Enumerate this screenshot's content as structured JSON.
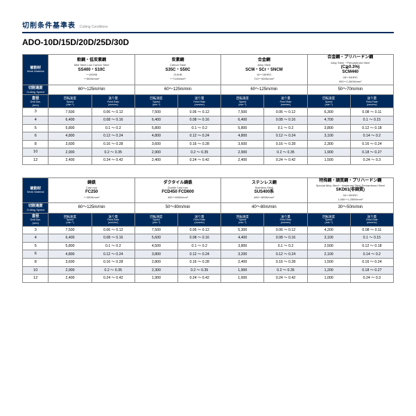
{
  "title_jp": "切削条件基準表",
  "title_en": "Cutting Conditions",
  "model": "ADO-10D/15D/20D/25D/30D",
  "labels": {
    "work": "被削材",
    "work_en": "Work Material",
    "speed": "切削速度",
    "speed_en": "Cutting Speed",
    "dia": "直径",
    "dia_en": "Drill Dia.",
    "dia_unit": "(mm)",
    "rot": "回転速度",
    "rot_en": "Speed",
    "rot_unit": "(min⁻¹)",
    "feed": "送り量",
    "feed_en": "Feed Rate",
    "feed_unit": "(mm/rev)"
  },
  "diameters": [
    "3",
    "4",
    "5",
    "6",
    "8",
    "10",
    "12"
  ],
  "t1": {
    "mats": [
      {
        "jp": "軟鋼・低炭素鋼",
        "en": "Mild Steel Low Carbon Steel",
        "spec": "SS400・S10C",
        "d1": "～150HB",
        "d2": "～500N/mm²"
      },
      {
        "jp": "炭素鋼",
        "en": "Carbon Steel",
        "spec": "S35C・S50C",
        "d1": "210HB",
        "d2": "～710N/mm²"
      },
      {
        "jp": "合金鋼",
        "en": "Alloy Steel",
        "spec": "SCM・SCr・SNCM",
        "d1": "16～28HRC",
        "d2": "710～900N/mm²"
      },
      {
        "jp": "合金鋼・プリハードン鋼",
        "en": "Alloy Steel・Prehardened Steel",
        "spec2": "(C≧0.3%)",
        "spec": "SCM440",
        "d1": "28～34HRC",
        "d2": "900～1,060N/mm²"
      }
    ],
    "speeds": [
      "60～125m/min",
      "60～125m/min",
      "60～125m/min",
      "50～70m/min"
    ],
    "rows": [
      [
        [
          "7,500",
          "0.06 ～ 0.12"
        ],
        [
          "7,500",
          "0.06 ～ 0.12"
        ],
        [
          "7,500",
          "0.06 ～ 0.12"
        ],
        [
          "6,300",
          "0.08 ～ 0.11"
        ]
      ],
      [
        [
          "6,400",
          "0.08 ～ 0.16"
        ],
        [
          "6,400",
          "0.08 ～ 0.16"
        ],
        [
          "6,400",
          "0.08 ～ 0.16"
        ],
        [
          "4,700",
          "0.1 ～ 0.15"
        ]
      ],
      [
        [
          "5,800",
          "0.1 ～ 0.2"
        ],
        [
          "5,800",
          "0.1 ～ 0.2"
        ],
        [
          "5,800",
          "0.1 ～ 0.2"
        ],
        [
          "3,800",
          "0.12 ～ 0.18"
        ]
      ],
      [
        [
          "4,800",
          "0.12 ～ 0.24"
        ],
        [
          "4,800",
          "0.12 ～ 0.24"
        ],
        [
          "4,800",
          "0.12 ～ 0.24"
        ],
        [
          "3,100",
          "0.14 ～ 0.2"
        ]
      ],
      [
        [
          "3,600",
          "0.16 ～ 0.28"
        ],
        [
          "3,600",
          "0.16 ～ 0.28"
        ],
        [
          "3,600",
          "0.16 ～ 0.28"
        ],
        [
          "2,300",
          "0.16 ～ 0.24"
        ]
      ],
      [
        [
          "2,900",
          "0.2 ～ 0.35"
        ],
        [
          "2,900",
          "0.2 ～ 0.35"
        ],
        [
          "2,900",
          "0.2 ～ 0.35"
        ],
        [
          "1,900",
          "0.18 ～ 0.27"
        ]
      ],
      [
        [
          "2,400",
          "0.24 ～ 0.42"
        ],
        [
          "2,400",
          "0.24 ～ 0.42"
        ],
        [
          "2,400",
          "0.24 ～ 0.42"
        ],
        [
          "1,500",
          "0.24 ～ 0.3"
        ]
      ]
    ]
  },
  "t2": {
    "mats": [
      {
        "jp": "鋳鉄",
        "en": "Cast Iron",
        "spec": "FC250",
        "d1": "",
        "d2": "～350N/mm²"
      },
      {
        "jp": "ダクタイル鋳鉄",
        "en": "Ductile Cast Iron",
        "spec": "FCD450 FCD600",
        "d1": "",
        "d2": "400～600N/mm²"
      },
      {
        "jp": "ステンレス鋼",
        "en": "Stainless Steel",
        "spec": "SUS400系",
        "d1": "",
        "d2": "480～800N/mm²"
      },
      {
        "jp": "特殊鋼・調質鋼・プリハードン鋼",
        "en": "Special Alloy Steel・Hardened Steel Prehardened Steel",
        "spec": "SKD61(非調質)",
        "d1": "34～40HRC",
        "d2": "1,060～1,250N/mm²"
      }
    ],
    "speeds": [
      "60～125m/min",
      "50～80m/min",
      "40～80m/min",
      "30～50m/min"
    ],
    "rows": [
      [
        [
          "7,500",
          "0.06 ～ 0.12"
        ],
        [
          "7,500",
          "0.06 ～ 0.12"
        ],
        [
          "5,300",
          "0.06 ～ 0.12"
        ],
        [
          "4,200",
          "0.08 ～ 0.11"
        ]
      ],
      [
        [
          "6,400",
          "0.08 ～ 0.16"
        ],
        [
          "5,600",
          "0.08 ～ 0.16"
        ],
        [
          "4,400",
          "0.08 ～ 0.16"
        ],
        [
          "3,100",
          "0.1 ～ 0.15"
        ]
      ],
      [
        [
          "5,800",
          "0.1 ～ 0.2"
        ],
        [
          "4,500",
          "0.1 ～ 0.2"
        ],
        [
          "3,800",
          "0.1 ～ 0.2"
        ],
        [
          "2,500",
          "0.12 ～ 0.18"
        ]
      ],
      [
        [
          "4,800",
          "0.12 ～ 0.24"
        ],
        [
          "3,800",
          "0.12 ～ 0.24"
        ],
        [
          "3,200",
          "0.12 ～ 0.24"
        ],
        [
          "2,100",
          "0.14 ～ 0.2"
        ]
      ],
      [
        [
          "3,600",
          "0.16 ～ 0.28"
        ],
        [
          "2,800",
          "0.16 ～ 0.28"
        ],
        [
          "2,400",
          "0.16 ～ 0.28"
        ],
        [
          "1,500",
          "0.16 ～ 0.24"
        ]
      ],
      [
        [
          "2,900",
          "0.2 ～ 0.35"
        ],
        [
          "2,300",
          "0.2 ～ 0.35"
        ],
        [
          "1,900",
          "0.2 ～ 0.35"
        ],
        [
          "1,200",
          "0.18 ～ 0.27"
        ]
      ],
      [
        [
          "2,400",
          "0.24 ～ 0.42"
        ],
        [
          "1,900",
          "0.24 ～ 0.42"
        ],
        [
          "1,600",
          "0.24 ～ 0.42"
        ],
        [
          "1,000",
          "0.24 ～ 0.3"
        ]
      ]
    ]
  }
}
